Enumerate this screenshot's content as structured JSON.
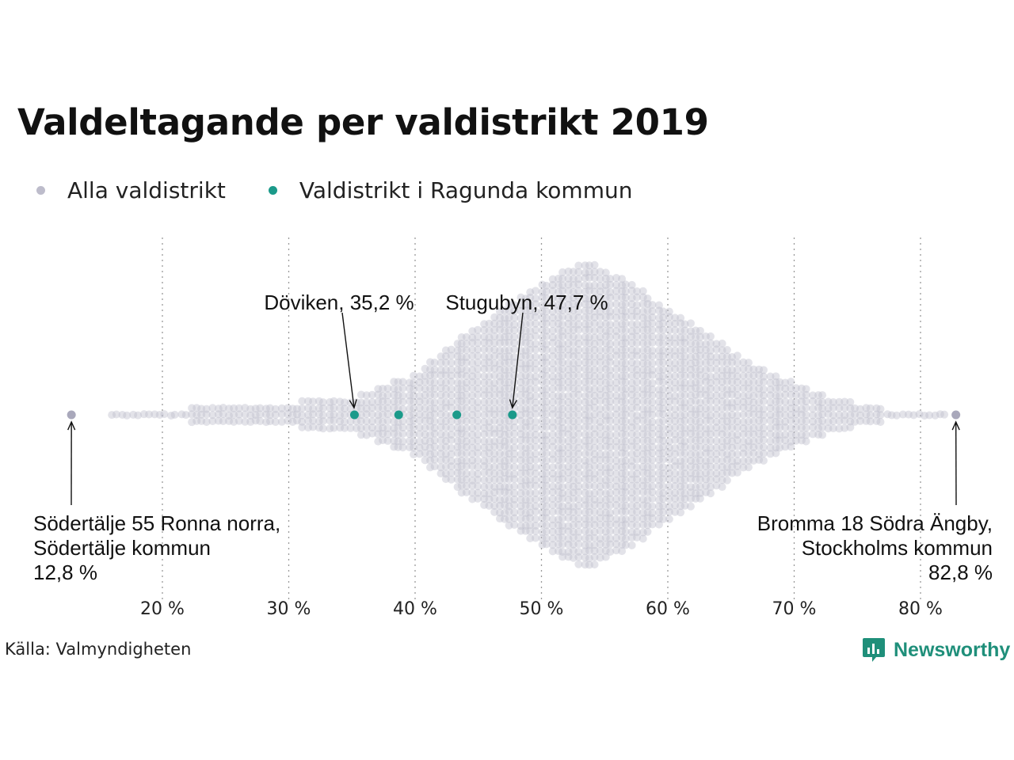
{
  "title": "Valdeltagande per valdistrikt 2019",
  "legend": {
    "items": [
      {
        "label": "Alla valdistrikt",
        "color": "#bdbccb"
      },
      {
        "label": "Valdistrikt i Ragunda kommun",
        "color": "#1b9a8a"
      }
    ]
  },
  "source": "Källa: Valmyndigheten",
  "logo": {
    "text": "Newsworthy",
    "icon": "newsworthy-logo-icon",
    "color": "#1f8f7a"
  },
  "chart_data": {
    "type": "scatter",
    "subtype": "beeswarm",
    "xlabel": "",
    "ylabel": "",
    "xlim": [
      10,
      85
    ],
    "x_ticks": [
      20,
      30,
      40,
      50,
      60,
      70,
      80
    ],
    "x_tick_labels": [
      "20 %",
      "30 %",
      "40 %",
      "50 %",
      "60 %",
      "70 %",
      "80 %"
    ],
    "grid": "vertical dotted",
    "series": [
      {
        "name": "Alla valdistrikt",
        "color": "#bdbccb",
        "distribution_profile": [
          {
            "x": 16.0,
            "height": 1
          },
          {
            "x": 20.0,
            "height": 2
          },
          {
            "x": 25.0,
            "height": 5
          },
          {
            "x": 30.0,
            "height": 6
          },
          {
            "x": 35.0,
            "height": 8
          },
          {
            "x": 40.0,
            "height": 20
          },
          {
            "x": 45.0,
            "height": 44
          },
          {
            "x": 50.0,
            "height": 64
          },
          {
            "x": 53.6,
            "height": 76
          },
          {
            "x": 57.0,
            "height": 64
          },
          {
            "x": 62.0,
            "height": 44
          },
          {
            "x": 67.0,
            "height": 24
          },
          {
            "x": 72.0,
            "height": 10
          },
          {
            "x": 76.0,
            "height": 4
          },
          {
            "x": 79.0,
            "height": 2
          },
          {
            "x": 82.0,
            "height": 1
          }
        ],
        "highlighted_points": [
          12.8,
          82.8
        ]
      },
      {
        "name": "Valdistrikt i Ragunda kommun",
        "color": "#1b9a8a",
        "values": [
          35.2,
          38.7,
          43.3,
          47.7
        ]
      }
    ],
    "annotations": [
      {
        "x": 35.2,
        "lines": [
          "Döviken, 35,2 %"
        ]
      },
      {
        "x": 47.7,
        "lines": [
          "Stugubyn, 47,7 %"
        ]
      },
      {
        "x": 12.8,
        "lines": [
          "Södertälje 55 Ronna norra,",
          "Södertälje kommun",
          "12,8 %"
        ]
      },
      {
        "x": 82.8,
        "lines": [
          "Bromma 18 Södra Ängby,",
          "Stockholms kommun",
          "82,8 %"
        ]
      }
    ]
  }
}
